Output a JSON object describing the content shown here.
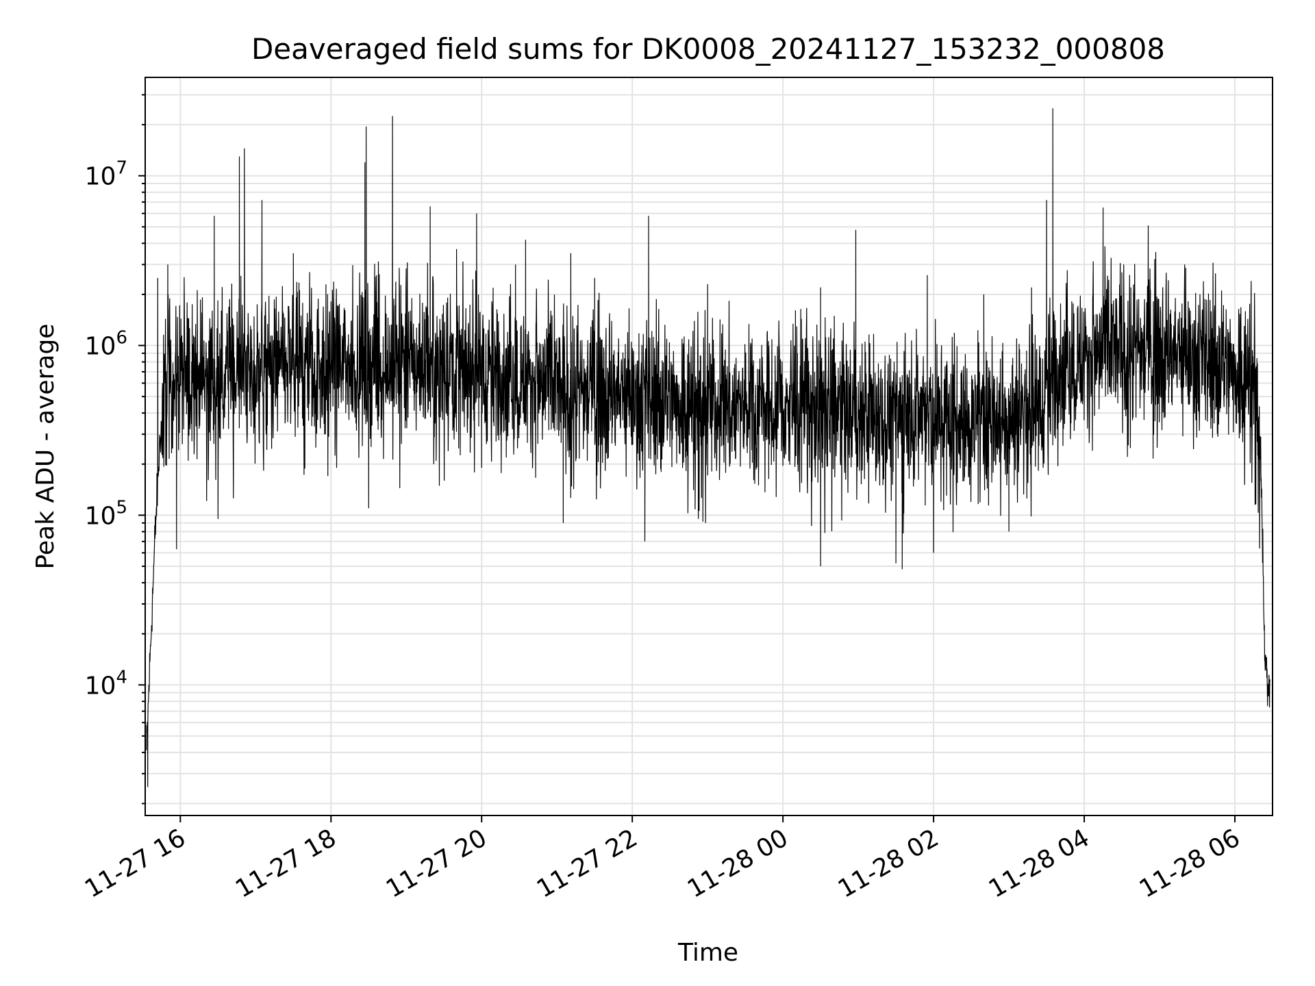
{
  "chart_data": {
    "type": "line",
    "title": "Deaveraged field sums for DK0008_20241127_153232_000808",
    "xlabel": "Time",
    "ylabel": "Peak ADU - average",
    "yscale": "log",
    "ylim": [
      1700,
      38000000
    ],
    "xlim": [
      "2024-11-27 15:32",
      "2024-11-28 06:30"
    ],
    "grid": true,
    "x_ticks": [
      "11-27 16",
      "11-27 18",
      "11-27 20",
      "11-27 22",
      "11-28 00",
      "11-28 02",
      "11-28 04",
      "11-28 06"
    ],
    "y_ticks": [
      {
        "base": "10",
        "exp": "4"
      },
      {
        "base": "10",
        "exp": "5"
      },
      {
        "base": "10",
        "exp": "6"
      },
      {
        "base": "10",
        "exp": "7"
      }
    ],
    "color": "#000000",
    "baseline": [
      {
        "t": "2024-11-27 15:33",
        "y": 4000
      },
      {
        "t": "2024-11-27 15:36",
        "y": 15000
      },
      {
        "t": "2024-11-27 15:40",
        "y": 80000
      },
      {
        "t": "2024-11-27 15:44",
        "y": 300000
      },
      {
        "t": "2024-11-27 15:50",
        "y": 650000
      },
      {
        "t": "2024-11-27 16:30",
        "y": 650000
      },
      {
        "t": "2024-11-27 17:30",
        "y": 750000
      },
      {
        "t": "2024-11-27 19:30",
        "y": 800000
      },
      {
        "t": "2024-11-27 21:00",
        "y": 550000
      },
      {
        "t": "2024-11-27 23:00",
        "y": 450000
      },
      {
        "t": "2024-11-28 01:00",
        "y": 400000
      },
      {
        "t": "2024-11-28 02:30",
        "y": 350000
      },
      {
        "t": "2024-11-28 03:20",
        "y": 400000
      },
      {
        "t": "2024-11-28 03:40",
        "y": 750000
      },
      {
        "t": "2024-11-28 04:30",
        "y": 950000
      },
      {
        "t": "2024-11-28 05:30",
        "y": 850000
      },
      {
        "t": "2024-11-28 06:15",
        "y": 650000
      },
      {
        "t": "2024-11-28 06:20",
        "y": 300000
      },
      {
        "t": "2024-11-28 06:24",
        "y": 15000
      },
      {
        "t": "2024-11-28 06:28",
        "y": 8000
      }
    ],
    "spikes": [
      {
        "t": "2024-11-27 15:42",
        "y": 2500000
      },
      {
        "t": "2024-11-27 15:50",
        "y": 3000000
      },
      {
        "t": "2024-11-27 16:27",
        "y": 5800000
      },
      {
        "t": "2024-11-27 16:47",
        "y": 13000000
      },
      {
        "t": "2024-11-27 16:51",
        "y": 14500000
      },
      {
        "t": "2024-11-27 17:05",
        "y": 7200000
      },
      {
        "t": "2024-11-27 17:30",
        "y": 3500000
      },
      {
        "t": "2024-11-27 18:27",
        "y": 12000000
      },
      {
        "t": "2024-11-27 18:28",
        "y": 19500000
      },
      {
        "t": "2024-11-27 18:49",
        "y": 22500000
      },
      {
        "t": "2024-11-27 19:19",
        "y": 6600000
      },
      {
        "t": "2024-11-27 19:40",
        "y": 3700000
      },
      {
        "t": "2024-11-27 19:56",
        "y": 6000000
      },
      {
        "t": "2024-11-27 20:27",
        "y": 3000000
      },
      {
        "t": "2024-11-27 20:35",
        "y": 4200000
      },
      {
        "t": "2024-11-27 21:11",
        "y": 3500000
      },
      {
        "t": "2024-11-27 21:30",
        "y": 2500000
      },
      {
        "t": "2024-11-27 22:13",
        "y": 5800000
      },
      {
        "t": "2024-11-27 23:00",
        "y": 2300000
      },
      {
        "t": "2024-11-28 00:30",
        "y": 2200000
      },
      {
        "t": "2024-11-28 00:58",
        "y": 4800000
      },
      {
        "t": "2024-11-28 01:55",
        "y": 2600000
      },
      {
        "t": "2024-11-28 02:40",
        "y": 2000000
      },
      {
        "t": "2024-11-28 03:18",
        "y": 2200000
      },
      {
        "t": "2024-11-28 03:30",
        "y": 7200000
      },
      {
        "t": "2024-11-28 03:35",
        "y": 25000000
      },
      {
        "t": "2024-11-28 04:15",
        "y": 6500000
      },
      {
        "t": "2024-11-28 04:30",
        "y": 2700000
      },
      {
        "t": "2024-11-28 04:51",
        "y": 5100000
      },
      {
        "t": "2024-11-28 05:20",
        "y": 3000000
      },
      {
        "t": "2024-11-28 06:13",
        "y": 2400000
      }
    ],
    "dips": [
      {
        "t": "2024-11-27 15:34",
        "y": 2500
      },
      {
        "t": "2024-11-27 15:57",
        "y": 63000
      },
      {
        "t": "2024-11-27 16:30",
        "y": 95000
      },
      {
        "t": "2024-11-27 18:30",
        "y": 110000
      },
      {
        "t": "2024-11-27 20:00",
        "y": 190000
      },
      {
        "t": "2024-11-27 21:05",
        "y": 90000
      },
      {
        "t": "2024-11-27 22:10",
        "y": 70000
      },
      {
        "t": "2024-11-28 00:30",
        "y": 50000
      },
      {
        "t": "2024-11-28 01:30",
        "y": 52000
      },
      {
        "t": "2024-11-28 01:35",
        "y": 48000
      },
      {
        "t": "2024-11-28 02:00",
        "y": 60000
      },
      {
        "t": "2024-11-28 03:00",
        "y": 80000
      },
      {
        "t": "2024-11-28 06:26",
        "y": 7500
      }
    ]
  }
}
